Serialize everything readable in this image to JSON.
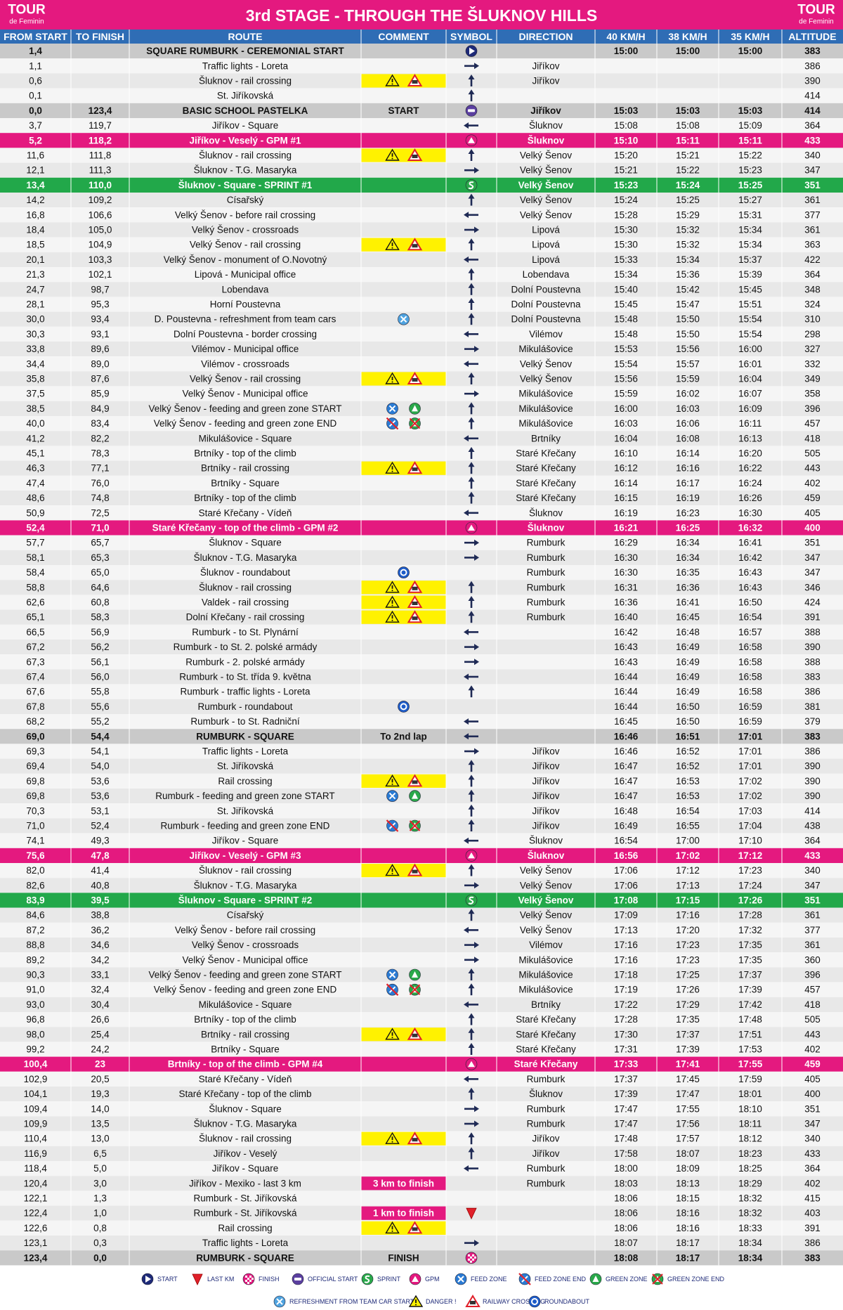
{
  "header": {
    "title": "3rd STAGE - THROUGH THE ŠLUKNOV HILLS",
    "logo_main": "TOUR",
    "logo_sub": "de Feminin"
  },
  "columns": [
    "FROM START",
    "TO FINISH",
    "ROUTE",
    "COMMENT",
    "SYMBOL",
    "DIRECTION",
    "40 KM/H",
    "38 KM/H",
    "35 KM/H",
    "ALTITUDE"
  ],
  "rows": [
    [
      "1,4",
      null,
      "SQUARE RUMBURK - CEREMONIAL START",
      null,
      null,
      "15:00",
      "15:00",
      "15:00",
      "383"
    ],
    [
      "1,1",
      null,
      "Traffic lights - Loreta",
      null,
      "Jiříkov",
      null,
      null,
      null,
      "386"
    ],
    [
      "0,6",
      null,
      "Šluknov - rail crossing",
      null,
      "Jiříkov",
      null,
      null,
      null,
      "390"
    ],
    [
      "0,1",
      null,
      "St. Jiříkovská",
      null,
      null,
      null,
      null,
      null,
      "414"
    ],
    [
      "0,0",
      "123,4",
      "BASIC SCHOOL PASTELKA",
      "START",
      "Jiříkov",
      "15:03",
      "15:03",
      "15:03",
      "414"
    ],
    [
      "3,7",
      "119,7",
      "Jiříkov - Square",
      null,
      "Šluknov",
      "15:08",
      "15:08",
      "15:09",
      "364"
    ],
    [
      "5,2",
      "118,2",
      "Jiříkov - Veselý - GPM #1",
      null,
      "Šluknov",
      "15:10",
      "15:11",
      "15:11",
      "433"
    ],
    [
      "11,6",
      "111,8",
      "Šluknov - rail crossing",
      null,
      "Velký Šenov",
      "15:20",
      "15:21",
      "15:22",
      "340"
    ],
    [
      "12,1",
      "111,3",
      "Šluknov - T.G. Masaryka",
      null,
      "Velký Šenov",
      "15:21",
      "15:22",
      "15:23",
      "347"
    ],
    [
      "13,4",
      "110,0",
      "Šluknov - Square - SPRINT #1",
      null,
      "Velký Šenov",
      "15:23",
      "15:24",
      "15:25",
      "351"
    ],
    [
      "14,2",
      "109,2",
      "Císařský",
      null,
      "Velký Šenov",
      "15:24",
      "15:25",
      "15:27",
      "361"
    ],
    [
      "16,8",
      "106,6",
      "Velký Šenov - before rail crossing",
      null,
      "Velký Šenov",
      "15:28",
      "15:29",
      "15:31",
      "377"
    ],
    [
      "18,4",
      "105,0",
      "Velký Šenov - crossroads",
      null,
      "Lipová",
      "15:30",
      "15:32",
      "15:34",
      "361"
    ],
    [
      "18,5",
      "104,9",
      "Velký Šenov - rail crossing",
      null,
      "Lipová",
      "15:30",
      "15:32",
      "15:34",
      "363"
    ],
    [
      "20,1",
      "103,3",
      "Velký Šenov - monument of O.Novotný",
      null,
      "Lipová",
      "15:33",
      "15:34",
      "15:37",
      "422"
    ],
    [
      "21,3",
      "102,1",
      "Lipová - Municipal office",
      null,
      "Lobendava",
      "15:34",
      "15:36",
      "15:39",
      "364"
    ],
    [
      "24,7",
      "98,7",
      "Lobendava",
      null,
      "Dolní Poustevna",
      "15:40",
      "15:42",
      "15:45",
      "348"
    ],
    [
      "28,1",
      "95,3",
      "Horní Poustevna",
      null,
      "Dolní Poustevna",
      "15:45",
      "15:47",
      "15:51",
      "324"
    ],
    [
      "30,0",
      "93,4",
      "D. Poustevna - refreshment from team cars",
      null,
      "Dolní Poustevna",
      "15:48",
      "15:50",
      "15:54",
      "310"
    ],
    [
      "30,3",
      "93,1",
      "Dolní Poustevna - border crossing",
      null,
      "Vilémov",
      "15:48",
      "15:50",
      "15:54",
      "298"
    ],
    [
      "33,8",
      "89,6",
      "Vilémov - Municipal office",
      null,
      "Mikulášovice",
      "15:53",
      "15:56",
      "16:00",
      "327"
    ],
    [
      "34,4",
      "89,0",
      "Vilémov - crossroads",
      null,
      "Velký Šenov",
      "15:54",
      "15:57",
      "16:01",
      "332"
    ],
    [
      "35,8",
      "87,6",
      "Velký Šenov - rail crossing",
      null,
      "Velký Šenov",
      "15:56",
      "15:59",
      "16:04",
      "349"
    ],
    [
      "37,5",
      "85,9",
      "Velký Šenov - Municipal office",
      null,
      "Mikulášovice",
      "15:59",
      "16:02",
      "16:07",
      "358"
    ],
    [
      "38,5",
      "84,9",
      "Velký Šenov - feeding and green zone START",
      null,
      "Mikulášovice",
      "16:00",
      "16:03",
      "16:09",
      "396"
    ],
    [
      "40,0",
      "83,4",
      "Velký Šenov - feeding and green zone END",
      null,
      "Mikulášovice",
      "16:03",
      "16:06",
      "16:11",
      "457"
    ],
    [
      "41,2",
      "82,2",
      "Mikulášovice - Square",
      null,
      "Brtníky",
      "16:04",
      "16:08",
      "16:13",
      "418"
    ],
    [
      "45,1",
      "78,3",
      "Brtníky - top of the climb",
      null,
      "Staré Křečany",
      "16:10",
      "16:14",
      "16:20",
      "505"
    ],
    [
      "46,3",
      "77,1",
      "Brtníky - rail crossing",
      null,
      "Staré Křečany",
      "16:12",
      "16:16",
      "16:22",
      "443"
    ],
    [
      "47,4",
      "76,0",
      "Brtníky - Square",
      null,
      "Staré Křečany",
      "16:14",
      "16:17",
      "16:24",
      "402"
    ],
    [
      "48,6",
      "74,8",
      "Brtníky - top of the climb",
      null,
      "Staré Křečany",
      "16:15",
      "16:19",
      "16:26",
      "459"
    ],
    [
      "50,9",
      "72,5",
      "Staré Křečany - Vídeň",
      null,
      "Šluknov",
      "16:19",
      "16:23",
      "16:30",
      "405"
    ],
    [
      "52,4",
      "71,0",
      "Staré Křečany - top of the climb - GPM #2",
      null,
      "Šluknov",
      "16:21",
      "16:25",
      "16:32",
      "400"
    ],
    [
      "57,7",
      "65,7",
      "Šluknov - Square",
      null,
      "Rumburk",
      "16:29",
      "16:34",
      "16:41",
      "351"
    ],
    [
      "58,1",
      "65,3",
      "Šluknov - T.G. Masaryka",
      null,
      "Rumburk",
      "16:30",
      "16:34",
      "16:42",
      "347"
    ],
    [
      "58,4",
      "65,0",
      "Šluknov - roundabout",
      null,
      "Rumburk",
      "16:30",
      "16:35",
      "16:43",
      "347"
    ],
    [
      "58,8",
      "64,6",
      "Šluknov - rail crossing",
      null,
      "Rumburk",
      "16:31",
      "16:36",
      "16:43",
      "346"
    ],
    [
      "62,6",
      "60,8",
      "Valdek - rail crossing",
      null,
      "Rumburk",
      "16:36",
      "16:41",
      "16:50",
      "424"
    ],
    [
      "65,1",
      "58,3",
      "Dolní Křečany - rail crossing",
      null,
      "Rumburk",
      "16:40",
      "16:45",
      "16:54",
      "391"
    ],
    [
      "66,5",
      "56,9",
      "Rumburk - to St. Plynární",
      null,
      null,
      "16:42",
      "16:48",
      "16:57",
      "388"
    ],
    [
      "67,2",
      "56,2",
      "Rumburk - to St. 2. polské armády",
      null,
      null,
      "16:43",
      "16:49",
      "16:58",
      "390"
    ],
    [
      "67,3",
      "56,1",
      "Rumburk - 2. polské armády",
      null,
      null,
      "16:43",
      "16:49",
      "16:58",
      "388"
    ],
    [
      "67,4",
      "56,0",
      "Rumburk - to St. třída 9. května",
      null,
      null,
      "16:44",
      "16:49",
      "16:58",
      "383"
    ],
    [
      "67,6",
      "55,8",
      "Rumburk - traffic lights - Loreta",
      null,
      null,
      "16:44",
      "16:49",
      "16:58",
      "386"
    ],
    [
      "67,8",
      "55,6",
      "Rumburk - roundabout",
      null,
      null,
      "16:44",
      "16:50",
      "16:59",
      "381"
    ],
    [
      "68,2",
      "55,2",
      "Rumburk - to St. Radniční",
      null,
      null,
      "16:45",
      "16:50",
      "16:59",
      "379"
    ],
    [
      "69,0",
      "54,4",
      "RUMBURK - SQUARE",
      "To 2nd lap",
      null,
      "16:46",
      "16:51",
      "17:01",
      "383"
    ],
    [
      "69,3",
      "54,1",
      "Traffic lights - Loreta",
      null,
      "Jiříkov",
      "16:46",
      "16:52",
      "17:01",
      "386"
    ],
    [
      "69,4",
      "54,0",
      "St. Jiříkovská",
      null,
      "Jiříkov",
      "16:47",
      "16:52",
      "17:01",
      "390"
    ],
    [
      "69,8",
      "53,6",
      "Rail crossing",
      null,
      "Jiříkov",
      "16:47",
      "16:53",
      "17:02",
      "390"
    ],
    [
      "69,8",
      "53,6",
      "Rumburk - feeding and green zone START",
      null,
      "Jiříkov",
      "16:47",
      "16:53",
      "17:02",
      "390"
    ],
    [
      "70,3",
      "53,1",
      "St. Jiříkovská",
      null,
      "Jiříkov",
      "16:48",
      "16:54",
      "17:03",
      "414"
    ],
    [
      "71,0",
      "52,4",
      "Rumburk - feeding and green zone END",
      null,
      "Jiříkov",
      "16:49",
      "16:55",
      "17:04",
      "438"
    ],
    [
      "74,1",
      "49,3",
      "Jiříkov - Square",
      null,
      "Šluknov",
      "16:54",
      "17:00",
      "17:10",
      "364"
    ],
    [
      "75,6",
      "47,8",
      "Jiříkov - Veselý - GPM #3",
      null,
      "Šluknov",
      "16:56",
      "17:02",
      "17:12",
      "433"
    ],
    [
      "82,0",
      "41,4",
      "Šluknov - rail crossing",
      null,
      "Velký Šenov",
      "17:06",
      "17:12",
      "17:23",
      "340"
    ],
    [
      "82,6",
      "40,8",
      "Šluknov - T.G. Masaryka",
      null,
      "Velký Šenov",
      "17:06",
      "17:13",
      "17:24",
      "347"
    ],
    [
      "83,9",
      "39,5",
      "Šluknov - Square - SPRINT #2",
      null,
      "Velký Šenov",
      "17:08",
      "17:15",
      "17:26",
      "351"
    ],
    [
      "84,6",
      "38,8",
      "Císařský",
      null,
      "Velký Šenov",
      "17:09",
      "17:16",
      "17:28",
      "361"
    ],
    [
      "87,2",
      "36,2",
      "Velký Šenov - before rail crossing",
      null,
      "Velký Šenov",
      "17:13",
      "17:20",
      "17:32",
      "377"
    ],
    [
      "88,8",
      "34,6",
      "Velký Šenov - crossroads",
      null,
      "Vilémov",
      "17:16",
      "17:23",
      "17:35",
      "361"
    ],
    [
      "89,2",
      "34,2",
      "Velký Šenov - Municipal office",
      null,
      "Mikulášovice",
      "17:16",
      "17:23",
      "17:35",
      "360"
    ],
    [
      "90,3",
      "33,1",
      "Velký Šenov - feeding and green zone START",
      null,
      "Mikulášovice",
      "17:18",
      "17:25",
      "17:37",
      "396"
    ],
    [
      "91,0",
      "32,4",
      "Velký Šenov - feeding and green zone END",
      null,
      "Mikulášovice",
      "17:19",
      "17:26",
      "17:39",
      "457"
    ],
    [
      "93,0",
      "30,4",
      "Mikulášovice - Square",
      null,
      "Brtníky",
      "17:22",
      "17:29",
      "17:42",
      "418"
    ],
    [
      "96,8",
      "26,6",
      "Brtníky - top of the climb",
      null,
      "Staré Křečany",
      "17:28",
      "17:35",
      "17:48",
      "505"
    ],
    [
      "98,0",
      "25,4",
      "Brtníky - rail crossing",
      null,
      "Staré Křečany",
      "17:30",
      "17:37",
      "17:51",
      "443"
    ],
    [
      "99,2",
      "24,2",
      "Brtníky - Square",
      null,
      "Staré Křečany",
      "17:31",
      "17:39",
      "17:53",
      "402"
    ],
    [
      "100,4",
      "23",
      "Brtníky - top of the climb - GPM #4",
      null,
      "Staré Křečany",
      "17:33",
      "17:41",
      "17:55",
      "459"
    ],
    [
      "102,9",
      "20,5",
      "Staré Křečany - Vídeň",
      null,
      "Rumburk",
      "17:37",
      "17:45",
      "17:59",
      "405"
    ],
    [
      "104,1",
      "19,3",
      "Staré Křečany - top of the climb",
      null,
      "Šluknov",
      "17:39",
      "17:47",
      "18:01",
      "400"
    ],
    [
      "109,4",
      "14,0",
      "Šluknov - Square",
      null,
      "Rumburk",
      "17:47",
      "17:55",
      "18:10",
      "351"
    ],
    [
      "109,9",
      "13,5",
      "Šluknov - T.G. Masaryka",
      null,
      "Rumburk",
      "17:47",
      "17:56",
      "18:11",
      "347"
    ],
    [
      "110,4",
      "13,0",
      "Šluknov - rail crossing",
      null,
      "Jiříkov",
      "17:48",
      "17:57",
      "18:12",
      "340"
    ],
    [
      "116,9",
      "6,5",
      "Jiříkov - Veselý",
      null,
      "Jiříkov",
      "17:58",
      "18:07",
      "18:23",
      "433"
    ],
    [
      "118,4",
      "5,0",
      "Jiříkov - Square",
      null,
      "Rumburk",
      "18:00",
      "18:09",
      "18:25",
      "364"
    ],
    [
      "120,4",
      "3,0",
      "Jiříkov - Mexiko - last 3 km",
      "3 km to finish",
      "Rumburk",
      "18:03",
      "18:13",
      "18:29",
      "402"
    ],
    [
      "122,1",
      "1,3",
      "Rumburk - St. Jiříkovská",
      null,
      null,
      "18:06",
      "18:15",
      "18:32",
      "415"
    ],
    [
      "122,4",
      "1,0",
      "Rumburk - St. Jiříkovská",
      "1 km to finish",
      null,
      "18:06",
      "18:16",
      "18:32",
      "403"
    ],
    [
      "122,6",
      "0,8",
      "Rail crossing",
      null,
      null,
      "18:06",
      "18:16",
      "18:33",
      "391"
    ],
    [
      "123,1",
      "0,3",
      "Traffic lights - Loreta",
      null,
      null,
      "18:07",
      "18:17",
      "18:34",
      "386"
    ],
    [
      "123,4",
      "0,0",
      "RUMBURK - SQUARE",
      "FINISH",
      null,
      "18:08",
      "18:17",
      "18:34",
      "383"
    ]
  ],
  "legend": [
    "START",
    "LAST KM",
    "FINISH",
    "OFFICIAL START",
    "SPRINT",
    "GPM",
    "FEED ZONE",
    "FEED ZONE END",
    "GREEN ZONE",
    "GREEN ZONE END",
    "REFRESHMENT FROM TEAM CAR START",
    "DANGER !",
    "RAILWAY CROSSING",
    "ROUNDABOUT"
  ]
}
